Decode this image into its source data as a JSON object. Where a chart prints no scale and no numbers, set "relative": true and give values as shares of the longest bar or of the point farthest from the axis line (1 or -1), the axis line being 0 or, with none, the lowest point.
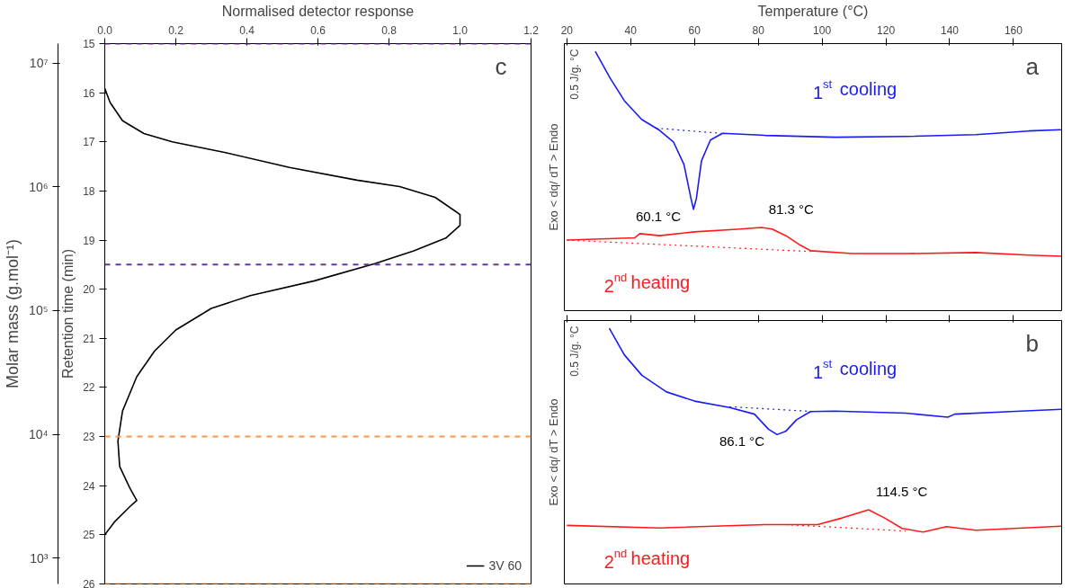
{
  "chart_data": [
    {
      "type": "line",
      "xlabel": "Normalised detector response",
      "ylabel": "Retention time (min)",
      "y2label": "Molar mass (g.mol⁻¹)",
      "xlim": [
        0,
        1.2
      ],
      "xticks": [
        {
          "value": 0,
          "label": "0.0"
        },
        0.2,
        0.4,
        0.6,
        0.8,
        {
          "value": 1,
          "label": "1.0"
        },
        1.2
      ],
      "ylim": [
        26,
        15
      ],
      "yticks": [
        15,
        16,
        17,
        18,
        19,
        20,
        21,
        22,
        23,
        24,
        25,
        26
      ],
      "y2lim": [
        617,
        14400000
      ],
      "y2ticks": [
        {
          "value": 1000,
          "label": "10³"
        },
        {
          "value": 10000,
          "label": "10⁴"
        },
        {
          "value": 100000,
          "label": "10⁵"
        },
        {
          "value": 1000000,
          "label": "10⁶"
        },
        {
          "value": 10000000,
          "label": "10⁷"
        }
      ],
      "log": "y2",
      "legend": "bottom right",
      "annotations": [
        "c"
      ],
      "ref_lines": [
        {
          "axis": "y",
          "value": 15,
          "color": "#7030a0",
          "line_style": "dashed"
        },
        {
          "axis": "y",
          "value": 19.5,
          "color": "#7030a0",
          "line_style": "dashed"
        },
        {
          "axis": "y",
          "value": 23,
          "color": "#f79646",
          "line_style": "dashed"
        },
        {
          "axis": "y",
          "value": 26,
          "color": "#f79646",
          "line_style": "dashed"
        }
      ],
      "series": [
        {
          "name": "3V 60",
          "color": "#000000",
          "x": [
            0,
            0.015,
            0.05,
            0.11,
            0.19,
            0.34,
            0.52,
            0.71,
            0.83,
            0.93,
            1.0,
            1.0,
            0.96,
            0.87,
            0.76,
            0.59,
            0.41,
            0.3,
            0.2,
            0.14,
            0.09,
            0.05,
            0.037,
            0.042,
            0.07,
            0.09,
            0.07,
            0.027,
            0
          ],
          "values": [
            15.91,
            16.2,
            16.57,
            16.83,
            17.0,
            17.22,
            17.52,
            17.78,
            17.91,
            18.13,
            18.48,
            18.7,
            18.96,
            19.22,
            19.48,
            19.83,
            20.13,
            20.39,
            20.83,
            21.26,
            21.78,
            22.48,
            23.09,
            23.61,
            24.04,
            24.3,
            24.43,
            24.74,
            25.0
          ]
        }
      ]
    },
    {
      "type": "line",
      "xlabel": "Temperature (°C)",
      "ylabel": "Exo < dq/ dT > Endo",
      "xlim": [
        19.2,
        175.1
      ],
      "xticks": [
        20,
        40,
        60,
        80,
        100,
        120,
        140,
        160
      ],
      "relative": true,
      "tick_labels": "x",
      "legend": false,
      "annotations": [
        "a",
        "0.5 J/g. °C",
        {
          "text": "60.1 °C",
          "x": 59.7,
          "y": 0.391
        },
        {
          "text": "81.3 °C",
          "x": 81,
          "y": 0.321
        }
      ],
      "series": [
        {
          "name": "1$^{st}$ cooling",
          "color": "#1a1aff",
          "x": [
            28.9,
            33.6,
            38,
            43.5,
            49,
            53.4,
            56.7,
            58.9,
            59.7,
            60.6,
            62.2,
            65,
            68.8,
            82.1,
            104.1,
            126.2,
            148.2,
            164.8,
            175
          ],
          "values": [
            1,
            0.896,
            0.81,
            0.737,
            0.696,
            0.651,
            0.564,
            0.433,
            0.391,
            0.433,
            0.578,
            0.658,
            0.684,
            0.676,
            0.669,
            0.672,
            0.679,
            0.693,
            0.698
          ]
        },
        {
          "color": "#1a1aff",
          "line_style": "dotted",
          "x": [
            47.9,
            68.3
          ],
          "values": [
            0.704,
            0.684
          ]
        },
        {
          "name": "2$^{nd}$  heating",
          "color": "#ff1a1a",
          "x": [
            20,
            41.3,
            42.9,
            49,
            60,
            73.3,
            81,
            84.3,
            88.7,
            93.1,
            96.4,
            109.6,
            126.2,
            148.2,
            164.8,
            175
          ],
          "values": [
            0.272,
            0.281,
            0.297,
            0.289,
            0.304,
            0.314,
            0.321,
            0.315,
            0.289,
            0.253,
            0.231,
            0.22,
            0.22,
            0.224,
            0.214,
            0.21
          ]
        },
        {
          "color": "#ff1a1a",
          "line_style": "dotted",
          "x": [
            20,
            96.4
          ],
          "values": [
            0.272,
            0.228
          ]
        }
      ]
    },
    {
      "type": "line",
      "ylabel": "Exo < dq/ dT > Endo",
      "xlim": [
        19.2,
        175.1
      ],
      "xticks": [
        20,
        40,
        60,
        80,
        100,
        120,
        140,
        160
      ],
      "relative": true,
      "tick_labels": false,
      "legend": false,
      "annotations": [
        "b",
        "0.5 J/g. °C",
        {
          "text": "86.1 °C",
          "x": 85.9,
          "y": 0.584
        },
        {
          "text": "114.5 °C",
          "x": 114.6,
          "y": 0.29
        }
      ],
      "series": [
        {
          "name": "1$^{st}$ cooling",
          "color": "#1a1aff",
          "x": [
            33.3,
            38,
            43.5,
            51.2,
            60,
            71,
            78.8,
            83.2,
            85.9,
            88.7,
            92,
            96.4,
            104.1,
            126.2,
            139.4,
            141.6,
            159.2,
            175
          ],
          "values": [
            1,
            0.896,
            0.816,
            0.751,
            0.715,
            0.69,
            0.664,
            0.605,
            0.584,
            0.598,
            0.642,
            0.674,
            0.676,
            0.668,
            0.652,
            0.664,
            0.674,
            0.683
          ]
        },
        {
          "color": "#1a1aff",
          "line_style": "dotted",
          "x": [
            71,
            97.5
          ],
          "values": [
            0.693,
            0.674
          ]
        },
        {
          "name": "2$^{nd}$  heating",
          "color": "#ff1a1a",
          "x": [
            20,
            49,
            82.1,
            98.6,
            106.3,
            114.6,
            119.6,
            125.1,
            131.7,
            139,
            148.2,
            175
          ],
          "values": [
            0.229,
            0.219,
            0.232,
            0.232,
            0.258,
            0.29,
            0.258,
            0.217,
            0.203,
            0.224,
            0.21,
            0.226
          ]
        },
        {
          "color": "#ff1a1a",
          "line_style": "dotted",
          "x": [
            88.7,
            126.2
          ],
          "values": [
            0.232,
            0.207
          ]
        }
      ]
    }
  ]
}
